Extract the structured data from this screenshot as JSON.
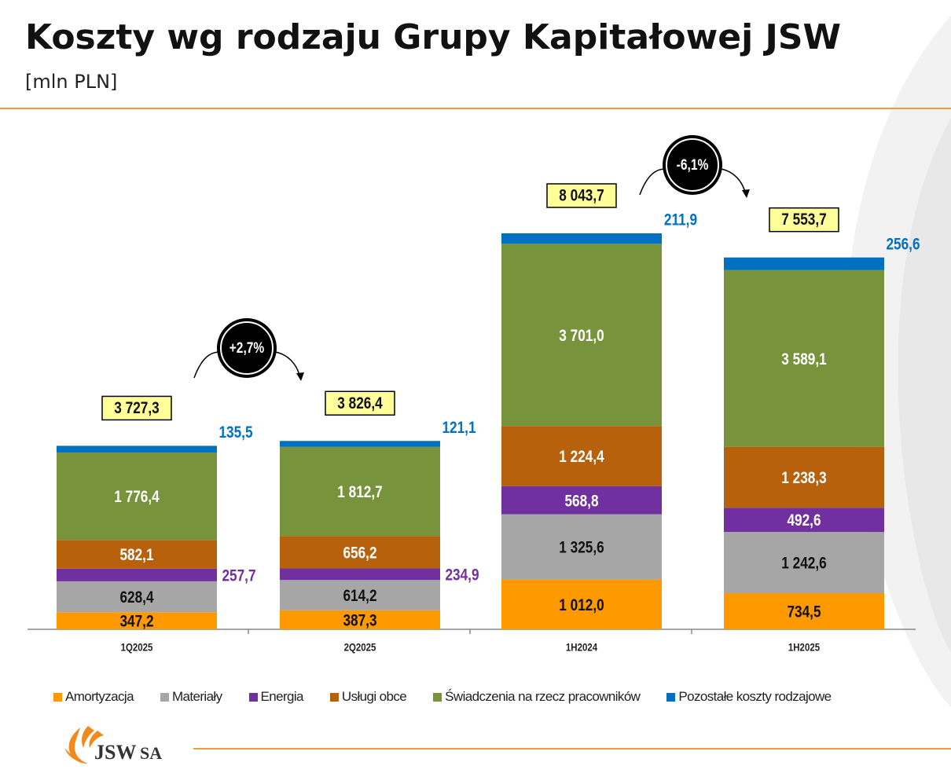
{
  "header": {
    "title": "Koszty wg rodzaju Grupy Kapitałowej JSW",
    "subtitle": "[mln PLN]"
  },
  "logo": {
    "text": "JSW SA"
  },
  "chart_data": {
    "type": "bar",
    "stacked": true,
    "title": "Koszty wg rodzaju Grupy Kapitałowej JSW",
    "unit": "mln PLN",
    "categories": [
      "1Q2025",
      "2Q2025",
      "1H2024",
      "1H2025"
    ],
    "series": [
      {
        "name": "Amortyzacja",
        "color": "#ff9900",
        "values": [
          347.2,
          387.3,
          1012.0,
          734.5
        ]
      },
      {
        "name": "Materiały",
        "color": "#a6a6a6",
        "values": [
          628.4,
          614.2,
          1325.6,
          1242.6
        ]
      },
      {
        "name": "Energia",
        "color": "#7030a0",
        "values": [
          257.7,
          234.9,
          568.8,
          492.6
        ]
      },
      {
        "name": "Usługi obce",
        "color": "#b8610d",
        "values": [
          582.1,
          656.2,
          1224.4,
          1238.3
        ]
      },
      {
        "name": "Świadczenia na rzecz pracowników",
        "color": "#77933c",
        "values": [
          1776.4,
          1812.7,
          3701.0,
          3589.1
        ]
      },
      {
        "name": "Pozostałe koszty rodzajowe",
        "color": "#0070c0",
        "values": [
          135.5,
          121.1,
          211.9,
          256.6
        ]
      }
    ],
    "totals": [
      3727.3,
      3826.4,
      8043.7,
      7553.7
    ],
    "changes": [
      {
        "from": "1Q2025",
        "to": "2Q2025",
        "label": "+2,7%"
      },
      {
        "from": "1H2024",
        "to": "1H2025",
        "label": "-6,1%"
      }
    ],
    "ylim": [
      0,
      8100
    ],
    "grid": false,
    "legend_position": "bottom"
  }
}
